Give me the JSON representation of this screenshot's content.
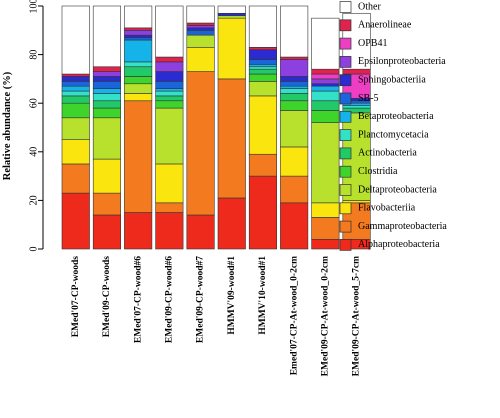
{
  "chart_data": {
    "type": "bar",
    "stacked": true,
    "ylabel": "Relative abundance (%)",
    "xlabel": "",
    "ylim": [
      0,
      100
    ],
    "yticks": [
      0,
      20,
      40,
      60,
      80,
      100
    ],
    "grid": false,
    "legend_position": "right",
    "categories": [
      "EMed'07-CP-woods",
      "EMed'09-CP-woods",
      "EMed'07-CP-wood#6",
      "EMed'09-CP-wood#6",
      "EMed'09-CP-wood#7",
      "HMMV'09-wood#1",
      "HMMV'10-wood#1",
      "Emed'07-CP-At-wood_0-2cm",
      "EMed'09-CP-At-wood_0-2cm",
      "EMed'09-CP-At-wood_5-7cm"
    ],
    "series": [
      {
        "name": "Alphaproteobacteria",
        "color": "#EE2A1C",
        "values": [
          23,
          14,
          15,
          15,
          14,
          21,
          30,
          19,
          4,
          4
        ]
      },
      {
        "name": "Gammaproteobacteria",
        "color": "#F47A20",
        "values": [
          12,
          9,
          46,
          4,
          59,
          49,
          9,
          11,
          9,
          15
        ]
      },
      {
        "name": "Flavobacteriia",
        "color": "#FAE60E",
        "values": [
          10,
          14,
          3,
          16,
          10,
          25,
          24,
          12,
          6,
          1
        ]
      },
      {
        "name": "Deltaproteobacteria",
        "color": "#B7E12C",
        "values": [
          9,
          17,
          4,
          23,
          5,
          1,
          6,
          15,
          33,
          36
        ]
      },
      {
        "name": "Clostridia",
        "color": "#3FD42C",
        "values": [
          6,
          4,
          3,
          3,
          0,
          0,
          3,
          4,
          5,
          0
        ]
      },
      {
        "name": "Actinobacteria",
        "color": "#21C968",
        "values": [
          3,
          3,
          4,
          2,
          0,
          0,
          2,
          3,
          4,
          2
        ]
      },
      {
        "name": "Planctomycetacia",
        "color": "#33E0C8",
        "values": [
          2,
          3,
          2,
          2,
          0,
          0,
          1,
          2,
          4,
          1
        ]
      },
      {
        "name": "Betaproteobacteria",
        "color": "#14B4EA",
        "values": [
          2,
          2,
          9,
          1,
          0,
          0,
          1,
          1,
          2,
          1
        ]
      },
      {
        "name": "SB-5",
        "color": "#1B64D9",
        "values": [
          2,
          3,
          1,
          3,
          2,
          0,
          2,
          2,
          0,
          1
        ]
      },
      {
        "name": "Sphingobacteriia",
        "color": "#2A2BD0",
        "values": [
          2,
          2,
          1,
          4,
          1,
          1,
          4,
          2,
          1,
          1
        ]
      },
      {
        "name": "Epsilonproteobacteria",
        "color": "#8D3FE0",
        "values": [
          0,
          2,
          2,
          4,
          1,
          0,
          0,
          7,
          2,
          0
        ]
      },
      {
        "name": "OPB41",
        "color": "#ED3EC4",
        "values": [
          0,
          0,
          0,
          0,
          0,
          0,
          0,
          0,
          2,
          10
        ]
      },
      {
        "name": "Anaerolineae",
        "color": "#E0224E",
        "values": [
          1,
          2,
          1,
          2,
          1,
          0,
          1,
          1,
          2,
          2
        ]
      },
      {
        "name": "Other",
        "color": "#FFFFFF",
        "values": [
          28,
          25,
          9,
          21,
          7,
          3,
          17,
          21,
          21,
          23
        ]
      }
    ]
  }
}
